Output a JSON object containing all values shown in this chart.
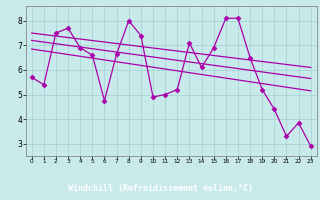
{
  "xlabel": "Windchill (Refroidissement éolien,°C)",
  "background_color": "#c8eaea",
  "grid_color": "#aad4d4",
  "line_color": "#aa00aa",
  "xlim": [
    -0.5,
    23.5
  ],
  "ylim": [
    2.5,
    8.6
  ],
  "xticks": [
    0,
    1,
    2,
    3,
    4,
    5,
    6,
    7,
    8,
    9,
    10,
    11,
    12,
    13,
    14,
    15,
    16,
    17,
    18,
    19,
    20,
    21,
    22,
    23
  ],
  "yticks": [
    3,
    4,
    5,
    6,
    7,
    8
  ],
  "series1_x": [
    0,
    1,
    2,
    3,
    4,
    5,
    6,
    7,
    8,
    9,
    10,
    11,
    12,
    13,
    14,
    15,
    16,
    17,
    18,
    19,
    20,
    21,
    22,
    23
  ],
  "series1_y": [
    5.7,
    5.4,
    7.5,
    7.7,
    6.9,
    6.6,
    4.75,
    6.65,
    8.0,
    7.4,
    4.9,
    5.0,
    5.2,
    7.1,
    6.1,
    6.9,
    8.1,
    8.1,
    6.5,
    5.2,
    4.4,
    3.3,
    3.85,
    2.9
  ],
  "trend1_x": [
    0,
    23
  ],
  "trend1_y": [
    7.5,
    6.1
  ],
  "trend2_x": [
    0,
    23
  ],
  "trend2_y": [
    7.2,
    5.65
  ],
  "trend3_x": [
    0,
    23
  ],
  "trend3_y": [
    6.85,
    5.15
  ],
  "marker": "D",
  "markersize": 2.5,
  "linewidth": 0.9,
  "axis_bg": "#c8eaea",
  "fig_bg": "#c8eaea",
  "tick_label_color": "#000000",
  "bottom_bar_color": "#220066",
  "xlabel_color": "#ffffff",
  "xlabel_fontsize": 6.0
}
